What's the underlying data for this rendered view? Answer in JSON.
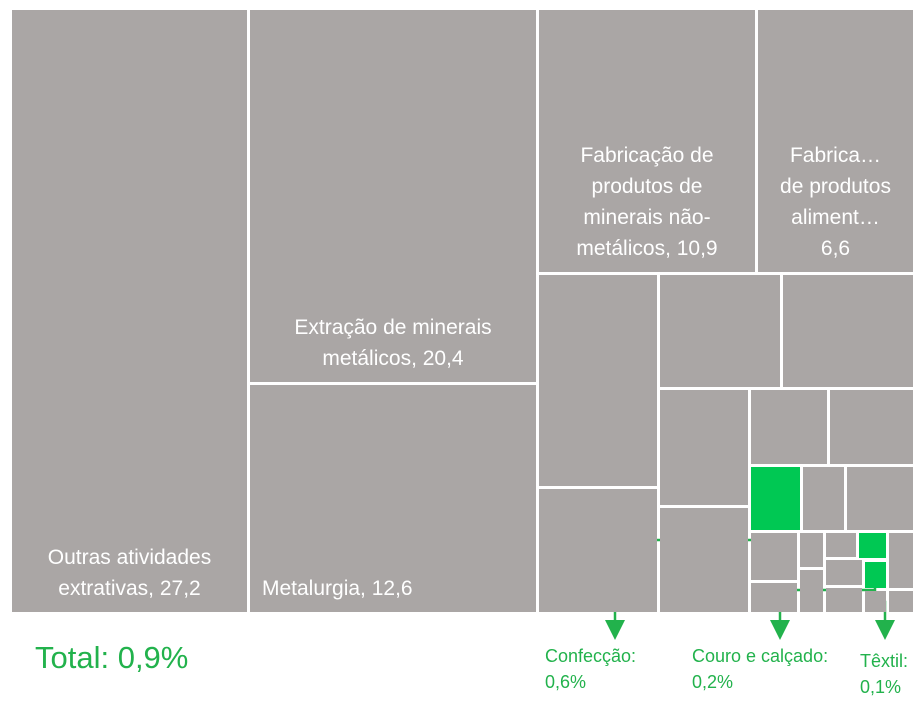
{
  "chart_data": {
    "type": "treemap",
    "categories": [
      "Outras atividades extrativas, 27,2",
      "Extração de minerais metálicos, 20,4",
      "Metalurgia, 12,6",
      "Fabricação de produtos de minerais não-metálicos, 10,9",
      "Fabrica… de produtos aliment… 6,6",
      null,
      null,
      null,
      null,
      null,
      null,
      null,
      null,
      null,
      null,
      null,
      null,
      null,
      null,
      null,
      null,
      null,
      null,
      null,
      null,
      null,
      null,
      null
    ],
    "values": [
      27.2,
      20.4,
      12.6,
      10.9,
      6.6,
      4.8,
      2.8,
      2.6,
      2.8,
      1.9,
      1.1,
      1.2,
      0.6,
      0.5,
      0.8,
      1.8,
      0.4,
      0.3,
      0.2,
      0.2,
      0.1,
      0.2,
      0.2,
      0.3,
      0.1,
      0.2,
      0.1,
      0.1
    ],
    "colors": [
      "#aaa6a5",
      "#aaa6a5",
      "#aaa6a5",
      "#aaa6a5",
      "#aaa6a5",
      "#aaa6a5",
      "#aaa6a5",
      "#aaa6a5",
      "#aaa6a5",
      "#aaa6a5",
      "#aaa6a5",
      "#aaa6a5",
      "#00c853",
      "#aaa6a5",
      "#aaa6a5",
      "#aaa6a5",
      "#aaa6a5",
      "#aaa6a5",
      "#aaa6a5",
      "#aaa6a5",
      "#aaa6a5",
      "#aaa6a5",
      "#00c853",
      "#aaa6a5",
      "#00c853",
      "#aaa6a5",
      "#aaa6a5",
      "#aaa6a5"
    ],
    "annotations": [
      "Confecção: 0,6%",
      "Couro e calçado: 0,2%",
      "Têxtil: 0,1%"
    ],
    "total_label": "Total: 0,9%"
  }
}
